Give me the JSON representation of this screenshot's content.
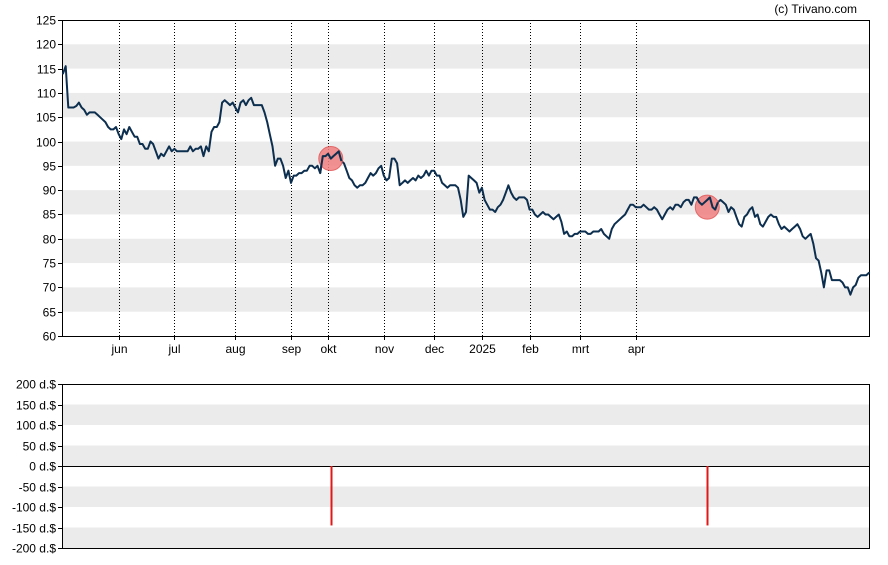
{
  "watermark": "(c) Trivano.com",
  "colors": {
    "line": "#0d2f4f",
    "band": "#ebebeb",
    "marker_fill": "#f08080",
    "marker_stroke": "#e15050",
    "bar": "#e01818",
    "axis": "#000000",
    "zero_line": "#000000",
    "grid": "#000000"
  },
  "chart_data": [
    {
      "type": "line",
      "title": "",
      "ylim": [
        60,
        125
      ],
      "y_ticks": [
        "60",
        "65",
        "70",
        "75",
        "80",
        "85",
        "90",
        "95",
        "100",
        "105",
        "110",
        "115",
        "120",
        "125"
      ],
      "x_ticks": [
        "jun",
        "jul",
        "aug",
        "sep",
        "okt",
        "nov",
        "dec",
        "2025",
        "feb",
        "mrt",
        "apr"
      ],
      "grid": "vertical dotted lines at month boundaries",
      "series": [
        {
          "values": [
            114,
            115.5,
            107,
            107,
            107,
            107.3,
            108,
            107,
            106.5,
            105.5,
            106,
            106,
            106,
            105.5,
            105,
            104.5,
            104,
            103,
            102.5,
            102.5,
            103,
            101.5,
            100.5,
            102.5,
            101.5,
            103,
            102,
            101,
            101,
            99.5,
            99.5,
            98.5,
            98.5,
            100,
            99.5,
            98,
            96.5,
            97.5,
            97,
            98,
            99,
            98,
            98.5,
            98,
            98,
            98,
            98,
            98,
            99,
            98,
            98.5,
            98.5,
            99,
            97,
            99,
            98,
            102,
            103,
            103,
            104,
            108,
            108.5,
            108,
            107.5,
            108,
            107,
            106,
            108,
            108.5,
            107.5,
            108.5,
            109,
            107.5,
            107.5,
            107.5,
            107.5,
            106,
            104,
            101.5,
            99,
            95,
            96.5,
            96.5,
            95,
            92.5,
            94,
            91.5,
            93,
            93,
            93.5,
            93.5,
            94,
            94,
            95,
            95,
            94.5,
            95,
            93.5,
            97,
            97,
            97.5,
            96.5,
            97,
            97.5,
            98,
            96,
            95.5,
            94,
            92.5,
            92,
            91,
            90.5,
            91,
            91,
            91.5,
            92.5,
            93.5,
            93,
            93.5,
            94.5,
            95,
            93,
            92,
            92.5,
            96.5,
            96.5,
            95.5,
            91,
            91.5,
            92,
            91.5,
            92,
            92.5,
            92,
            93,
            92.5,
            93,
            94,
            93,
            94,
            94,
            93,
            93,
            91.5,
            91,
            90.5,
            91,
            91,
            91,
            90.5,
            88,
            84.5,
            85.5,
            93,
            92.5,
            92,
            91.5,
            89.5,
            90.5,
            88,
            87,
            86,
            86,
            85.5,
            86.5,
            87,
            88,
            89.5,
            91,
            89.5,
            88.5,
            88,
            88.5,
            88.5,
            88.5,
            88,
            86,
            86,
            85,
            84.5,
            85,
            85.5,
            85,
            85,
            84.5,
            84,
            84.5,
            85,
            83.5,
            81,
            81.5,
            80.5,
            80.5,
            81,
            81,
            81.5,
            81.5,
            81.5,
            81,
            81,
            81.5,
            81.5,
            81.5,
            82,
            81,
            80.5,
            80,
            82,
            83,
            83.5,
            84,
            84.5,
            85,
            86,
            87,
            87,
            86.5,
            86.5,
            86.5,
            87,
            86.5,
            86,
            86,
            86.5,
            86,
            85,
            84,
            85,
            86,
            86.5,
            86,
            87,
            87,
            86.5,
            87.5,
            88,
            88,
            87,
            88.5,
            88.5,
            87.5,
            87,
            87.5,
            88,
            88.5,
            86.5,
            86,
            87.5,
            88,
            87.5,
            87,
            85.5,
            86.5,
            86,
            84.5,
            83,
            82.5,
            84.5,
            85,
            86,
            86.5,
            84.5,
            85,
            83,
            82.5,
            83.5,
            84.5,
            85,
            84.5,
            84.5,
            83,
            82,
            82.5,
            82,
            81.5,
            82,
            82.5,
            83,
            82,
            80.5,
            80,
            80.5,
            81,
            79,
            76,
            75.5,
            73,
            70,
            73.5,
            73.5,
            71.5,
            71.5,
            71.5,
            71.5,
            71,
            70,
            70,
            68.5,
            70,
            70.5,
            72,
            72.5,
            72.5,
            72.5,
            73
          ]
        }
      ],
      "annotations": [
        {
          "label": "dividend marker",
          "x_index": 101,
          "y": 96.5
        },
        {
          "label": "dividend marker",
          "x_index": 243,
          "y": 86.5
        }
      ]
    },
    {
      "type": "bar",
      "title": "",
      "ylim": [
        -200,
        200
      ],
      "y_ticks": [
        "-200 d.$",
        "-150 d.$",
        "-100 d.$",
        "-50 d.$",
        "0 d.$",
        "50 d.$",
        "100 d.$",
        "150 d.$",
        "200 d.$"
      ],
      "x_index_max": 292,
      "bars": [
        {
          "x_index": 101,
          "value": -145
        },
        {
          "x_index": 243,
          "value": -145
        }
      ]
    }
  ]
}
